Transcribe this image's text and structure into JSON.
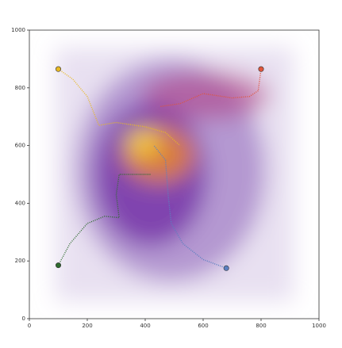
{
  "chart_data": {
    "type": "line",
    "xlim": [
      0,
      1000
    ],
    "ylim": [
      0,
      1000
    ],
    "xticks": [
      0,
      200,
      400,
      600,
      800,
      1000
    ],
    "yticks": [
      0,
      200,
      400,
      600,
      800,
      1000
    ],
    "series": [
      {
        "color": "#e8b923",
        "x": [
          100,
          150,
          200,
          240,
          300,
          400,
          470,
          520
        ],
        "values": [
          865,
          830,
          770,
          670,
          680,
          665,
          645,
          600
        ]
      },
      {
        "color": "#e0553c",
        "x": [
          800,
          790,
          760,
          700,
          600,
          520,
          450
        ],
        "values": [
          865,
          790,
          770,
          765,
          780,
          745,
          735
        ]
      },
      {
        "color": "#2e6b2e",
        "x": [
          100,
          140,
          200,
          260,
          310,
          300,
          310,
          420
        ],
        "values": [
          185,
          260,
          330,
          355,
          350,
          430,
          500,
          500
        ]
      },
      {
        "color": "#5b7fc0",
        "x": [
          680,
          600,
          530,
          490,
          480,
          470,
          430
        ],
        "values": [
          175,
          205,
          260,
          330,
          420,
          550,
          600
        ]
      }
    ]
  }
}
